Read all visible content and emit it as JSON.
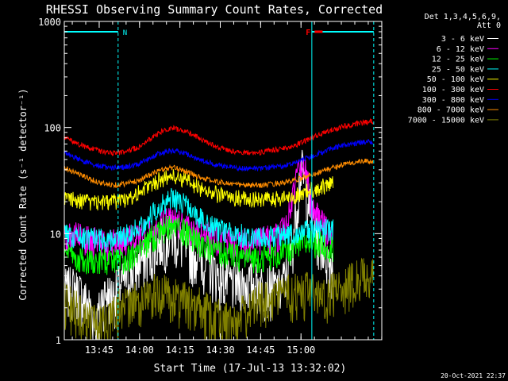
{
  "chart_data": {
    "type": "line",
    "title": "RHESSI Observing Summary Count Rates, Corrected",
    "xlabel": "Start Time (17-Jul-13 13:32:02)",
    "ylabel": "Corrected Count Rate (s⁻¹ detector⁻¹)",
    "y_scale": "log",
    "ylim": [
      1,
      1000
    ],
    "xlim_minutes": [
      0,
      118
    ],
    "x_ticks": [
      {
        "label": "13:45",
        "minute": 12.97
      },
      {
        "label": "14:00",
        "minute": 27.97
      },
      {
        "label": "14:15",
        "minute": 42.97
      },
      {
        "label": "14:30",
        "minute": 57.97
      },
      {
        "label": "14:45",
        "minute": 72.97
      },
      {
        "label": "15:00",
        "minute": 87.97
      }
    ],
    "y_ticks": [
      {
        "label": "1",
        "value": 1
      },
      {
        "label": "10",
        "value": 10
      },
      {
        "label": "100",
        "value": 100
      },
      {
        "label": "1000",
        "value": 1000
      }
    ],
    "legend_title": [
      "Det 1,3,4,5,6,9,",
      "Att 0"
    ],
    "legend_placement": "right",
    "date_stamp": "20-Oct-2021 22:37",
    "annotations": [
      {
        "label": "N",
        "color": "#00ffff"
      },
      {
        "label": "F",
        "color": "#ff0000"
      }
    ],
    "night_intervals_minutes": [
      [
        0,
        20
      ],
      [
        92,
        115
      ]
    ],
    "flare_marker_minutes": [
      93,
      96
    ],
    "flare_marker_value": 800,
    "series": [
      {
        "name": "3 - 6 keV",
        "color": "#ffffff",
        "x": [
          0,
          3,
          6,
          9,
          12,
          14,
          16,
          18,
          20,
          24,
          28,
          32,
          36,
          40,
          42,
          46,
          50,
          54,
          58,
          62,
          66,
          70,
          74,
          78,
          80,
          82,
          84,
          86,
          87,
          88,
          90,
          92,
          94,
          96,
          98,
          100
        ],
        "y": [
          3.0,
          3.2,
          2.8,
          2.2,
          1.4,
          2.6,
          2.8,
          2.6,
          3.2,
          4.0,
          5.5,
          6.5,
          9.0,
          10.0,
          9.0,
          7.0,
          6.5,
          5.0,
          4.0,
          3.5,
          3.5,
          3.5,
          3.3,
          3.2,
          3.0,
          4.0,
          6.0,
          15.0,
          25.0,
          45.0,
          25.0,
          15.0,
          10.0,
          8.0,
          6.0,
          5.0
        ]
      },
      {
        "name": "6 - 12 keV",
        "color": "#ff00ff",
        "x": [
          0,
          4,
          8,
          12,
          16,
          20,
          24,
          28,
          32,
          36,
          40,
          44,
          48,
          52,
          56,
          60,
          64,
          68,
          72,
          76,
          80,
          82,
          84,
          86,
          88,
          90,
          92,
          94,
          96,
          98,
          100
        ],
        "y": [
          10.0,
          9.5,
          9.0,
          8.5,
          8.3,
          8.5,
          8.8,
          9.5,
          11.0,
          13.0,
          14.0,
          13.0,
          11.0,
          10.0,
          9.5,
          9.0,
          8.5,
          8.5,
          8.5,
          9.0,
          9.5,
          12.0,
          18.0,
          30.0,
          50.0,
          35.0,
          20.0,
          15.0,
          12.0,
          11.0,
          10.0
        ]
      },
      {
        "name": "12 - 25 keV",
        "color": "#00ff00",
        "x": [
          0,
          4,
          8,
          12,
          16,
          20,
          24,
          28,
          32,
          36,
          40,
          44,
          48,
          52,
          56,
          60,
          64,
          68,
          72,
          76,
          80,
          84,
          88,
          92,
          96,
          100
        ],
        "y": [
          6.5,
          6.0,
          5.8,
          5.5,
          5.5,
          5.6,
          6.0,
          7.0,
          9.0,
          11.0,
          12.0,
          11.0,
          9.0,
          7.5,
          7.0,
          6.5,
          6.2,
          6.0,
          6.0,
          6.2,
          6.5,
          7.0,
          8.0,
          8.5,
          8.0,
          7.5
        ]
      },
      {
        "name": "25 - 50 keV",
        "color": "#00ffff",
        "x": [
          0,
          4,
          8,
          12,
          16,
          20,
          24,
          28,
          32,
          36,
          40,
          44,
          48,
          52,
          56,
          60,
          64,
          68,
          72,
          76,
          80,
          84,
          88,
          92,
          96,
          100
        ],
        "y": [
          10.0,
          9.5,
          9.2,
          9.0,
          9.0,
          9.3,
          10.0,
          12.0,
          15.0,
          19.0,
          22.0,
          20.0,
          16.0,
          13.0,
          11.5,
          10.5,
          10.0,
          9.8,
          9.5,
          9.5,
          9.8,
          10.0,
          10.5,
          11.0,
          11.0,
          11.0
        ]
      },
      {
        "name": "50 - 100 keV",
        "color": "#ffff00",
        "x": [
          0,
          4,
          8,
          12,
          16,
          20,
          24,
          28,
          32,
          36,
          40,
          44,
          48,
          52,
          56,
          60,
          64,
          68,
          72,
          76,
          80,
          84,
          88,
          92,
          96,
          100
        ],
        "y": [
          22.0,
          21.0,
          20.0,
          20.0,
          20.0,
          20.5,
          22.0,
          25.0,
          29.0,
          33.0,
          35.0,
          33.0,
          29.0,
          26.0,
          24.0,
          22.5,
          22.0,
          21.5,
          21.0,
          21.0,
          21.5,
          22.0,
          24.0,
          26.0,
          28.0,
          30.0
        ]
      },
      {
        "name": "100 - 300 keV",
        "color": "#ff0000",
        "x": [
          0,
          4,
          8,
          12,
          16,
          20,
          24,
          28,
          32,
          36,
          40,
          44,
          48,
          52,
          56,
          60,
          64,
          68,
          72,
          76,
          80,
          84,
          88,
          92,
          96,
          100,
          104,
          108,
          112,
          115
        ],
        "y": [
          80.0,
          72.0,
          66.0,
          61.0,
          58.0,
          58.0,
          60.0,
          66.0,
          78.0,
          92.0,
          99.0,
          95.0,
          85.0,
          75.0,
          67.0,
          62.0,
          59.0,
          58.0,
          58.0,
          60.0,
          63.0,
          66.0,
          72.0,
          80.0,
          88.0,
          96.0,
          103.0,
          108.0,
          112.0,
          115.0
        ]
      },
      {
        "name": "300 - 800 keV",
        "color": "#0000ff",
        "x": [
          0,
          4,
          8,
          12,
          16,
          20,
          24,
          28,
          32,
          36,
          40,
          44,
          48,
          52,
          56,
          60,
          64,
          68,
          72,
          76,
          80,
          84,
          88,
          92,
          96,
          100,
          104,
          108,
          112,
          115
        ],
        "y": [
          58.0,
          52.0,
          47.0,
          44.0,
          42.0,
          42.0,
          43.0,
          46.0,
          52.0,
          58.0,
          61.0,
          58.0,
          53.0,
          48.0,
          45.0,
          43.0,
          42.0,
          41.0,
          41.0,
          42.0,
          43.0,
          45.0,
          49.0,
          54.0,
          59.0,
          64.0,
          68.0,
          71.0,
          73.0,
          74.0
        ]
      },
      {
        "name": "800 - 7000 keV",
        "color": "#ff8c00",
        "x": [
          0,
          4,
          8,
          12,
          16,
          20,
          24,
          28,
          32,
          36,
          40,
          44,
          48,
          52,
          56,
          60,
          64,
          68,
          72,
          76,
          80,
          84,
          88,
          92,
          96,
          100,
          104,
          108,
          112,
          115
        ],
        "y": [
          42.0,
          38.0,
          34.0,
          31.0,
          29.0,
          29.0,
          30.0,
          32.0,
          36.0,
          40.0,
          42.0,
          40.0,
          36.0,
          33.0,
          31.0,
          30.0,
          29.0,
          28.5,
          28.5,
          29.0,
          30.0,
          31.0,
          33.0,
          36.0,
          39.0,
          42.0,
          45.0,
          47.0,
          48.0,
          48.0
        ]
      },
      {
        "name": "7000 - 15000 keV",
        "color": "#808000",
        "x": [
          0,
          4,
          8,
          12,
          16,
          20,
          24,
          28,
          32,
          36,
          40,
          44,
          48,
          52,
          56,
          60,
          64,
          68,
          72,
          76,
          80,
          84,
          88,
          92,
          96,
          100,
          104,
          108,
          112,
          115
        ],
        "y": [
          2.5,
          2.0,
          1.6,
          1.4,
          1.5,
          2.0,
          2.2,
          2.5,
          2.8,
          2.8,
          2.6,
          2.4,
          2.2,
          2.0,
          1.7,
          1.5,
          1.6,
          2.0,
          2.4,
          2.5,
          2.6,
          2.8,
          3.0,
          2.8,
          2.6,
          3.0,
          3.4,
          3.8,
          4.0,
          4.0
        ]
      }
    ]
  }
}
